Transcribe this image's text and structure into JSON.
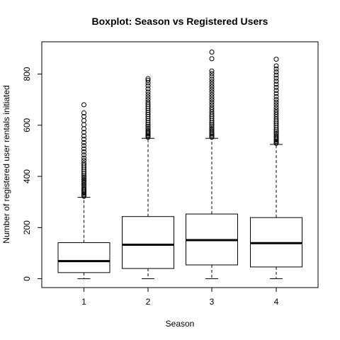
{
  "chart_data": {
    "type": "boxplot",
    "title": "Boxplot: Season vs Registered Users",
    "xlabel": "Season",
    "ylabel": "Number of registered user rentals initiated",
    "categories": [
      "1",
      "2",
      "3",
      "4"
    ],
    "y_ticks": [
      0,
      200,
      400,
      600,
      800
    ],
    "ylim": [
      -35,
      905
    ],
    "grid": false,
    "boxes": [
      {
        "category": "1",
        "min": 0,
        "q1": 24,
        "median": 69,
        "q3": 141,
        "whisker_high": 318,
        "outliers": [
          322,
          326,
          330,
          335,
          340,
          345,
          350,
          356,
          362,
          368,
          374,
          380,
          386,
          392,
          398,
          405,
          412,
          420,
          428,
          436,
          444,
          452,
          462,
          472,
          484,
          496,
          508,
          520,
          532,
          545,
          558,
          572,
          586,
          602,
          618,
          634,
          648,
          680
        ]
      },
      {
        "category": "2",
        "min": 0,
        "q1": 40,
        "median": 133,
        "q3": 243,
        "whisker_high": 549,
        "outliers": [
          553,
          557,
          561,
          566,
          571,
          577,
          583,
          589,
          596,
          603,
          610,
          618,
          626,
          634,
          642,
          650,
          658,
          666,
          674,
          682,
          690,
          700,
          710,
          720,
          730,
          742,
          754,
          765,
          775,
          782
        ]
      },
      {
        "category": "3",
        "min": 0,
        "q1": 54,
        "median": 151,
        "q3": 253,
        "whisker_high": 549,
        "outliers": [
          553,
          557,
          562,
          567,
          572,
          578,
          584,
          590,
          597,
          604,
          611,
          619,
          627,
          635,
          643,
          652,
          661,
          670,
          680,
          690,
          700,
          710,
          720,
          730,
          740,
          750,
          760,
          770,
          780,
          792,
          802,
          812,
          860,
          886
        ]
      },
      {
        "category": "4",
        "min": 0,
        "q1": 46,
        "median": 139,
        "q3": 239,
        "whisker_high": 525,
        "outliers": [
          529,
          533,
          537,
          542,
          547,
          552,
          558,
          564,
          570,
          577,
          584,
          592,
          600,
          608,
          616,
          624,
          633,
          642,
          651,
          660,
          670,
          680,
          690,
          700,
          712,
          724,
          736,
          748,
          760,
          772,
          784,
          796,
          808,
          820,
          832,
          858
        ]
      }
    ],
    "colors": {
      "box_fill": "#ffffff",
      "stroke": "#000000"
    }
  }
}
